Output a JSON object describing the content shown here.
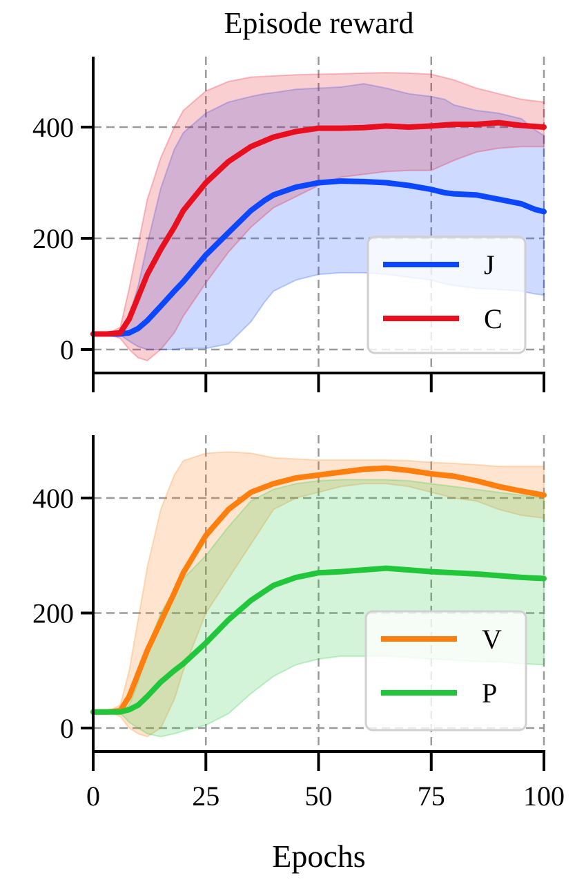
{
  "figure": {
    "title": "Episode reward",
    "xlabel": "Epochs"
  },
  "chart_data": [
    {
      "type": "line",
      "x_ticks": [
        "0",
        "25",
        "50",
        "75",
        "100"
      ],
      "y_ticks": [
        "0",
        "200",
        "400"
      ],
      "xlim": [
        0,
        100
      ],
      "ylim": [
        -40,
        510
      ],
      "grid": true,
      "legend_position": "center-right",
      "series": [
        {
          "name": "J",
          "color": "#0a47ff",
          "x": [
            0,
            3,
            6,
            8,
            10,
            12,
            15,
            18,
            20,
            25,
            30,
            35,
            38,
            40,
            45,
            50,
            55,
            60,
            65,
            70,
            75,
            78,
            80,
            85,
            90,
            95,
            98,
            100
          ],
          "y": [
            28,
            28,
            28,
            30,
            38,
            52,
            78,
            105,
            122,
            170,
            210,
            250,
            268,
            278,
            292,
            300,
            303,
            302,
            300,
            295,
            288,
            282,
            280,
            278,
            270,
            262,
            252,
            248
          ],
          "upper": [
            28,
            28,
            30,
            60,
            115,
            190,
            290,
            360,
            390,
            425,
            445,
            455,
            460,
            462,
            468,
            470,
            472,
            478,
            470,
            460,
            455,
            450,
            440,
            430,
            425,
            415,
            395,
            385
          ],
          "lower": [
            28,
            28,
            26,
            15,
            5,
            0,
            0,
            0,
            2,
            2,
            10,
            50,
            85,
            105,
            125,
            135,
            138,
            138,
            135,
            130,
            125,
            118,
            115,
            110,
            108,
            105,
            100,
            98
          ]
        },
        {
          "name": "C",
          "color": "#e8101e",
          "x": [
            0,
            3,
            6,
            8,
            10,
            12,
            15,
            18,
            20,
            25,
            30,
            35,
            40,
            45,
            50,
            55,
            60,
            65,
            70,
            75,
            80,
            85,
            90,
            95,
            100
          ],
          "y": [
            28,
            28,
            30,
            55,
            95,
            135,
            180,
            220,
            250,
            300,
            338,
            365,
            382,
            392,
            398,
            398,
            399,
            402,
            400,
            402,
            405,
            405,
            408,
            403,
            400
          ],
          "upper": [
            28,
            28,
            40,
            110,
            190,
            270,
            345,
            400,
            430,
            465,
            482,
            490,
            492,
            494,
            495,
            496,
            497,
            498,
            497,
            495,
            485,
            470,
            460,
            450,
            445
          ],
          "lower": [
            28,
            28,
            20,
            0,
            -15,
            -20,
            0,
            30,
            60,
            120,
            175,
            220,
            255,
            275,
            295,
            310,
            315,
            320,
            322,
            322,
            340,
            355,
            362,
            365,
            365
          ]
        }
      ]
    },
    {
      "type": "line",
      "x_ticks": [
        "0",
        "25",
        "50",
        "75",
        "100"
      ],
      "y_ticks": [
        "0",
        "200",
        "400"
      ],
      "xlim": [
        0,
        100
      ],
      "ylim": [
        -40,
        500
      ],
      "grid": true,
      "legend_position": "bottom-right",
      "series": [
        {
          "name": "V",
          "color": "#ff7f0e",
          "x": [
            0,
            3,
            6,
            8,
            10,
            12,
            15,
            18,
            20,
            25,
            30,
            35,
            40,
            45,
            50,
            55,
            60,
            65,
            70,
            75,
            80,
            85,
            90,
            95,
            100
          ],
          "y": [
            28,
            28,
            30,
            55,
            95,
            135,
            185,
            235,
            270,
            335,
            380,
            410,
            425,
            435,
            440,
            445,
            450,
            452,
            448,
            442,
            438,
            430,
            420,
            412,
            405
          ],
          "upper": [
            28,
            28,
            40,
            100,
            190,
            280,
            380,
            440,
            465,
            478,
            480,
            478,
            470,
            468,
            466,
            466,
            466,
            466,
            465,
            462,
            460,
            458,
            455,
            455,
            455
          ],
          "lower": [
            28,
            28,
            20,
            0,
            -10,
            -15,
            0,
            50,
            100,
            200,
            260,
            320,
            380,
            400,
            410,
            420,
            425,
            425,
            420,
            410,
            400,
            395,
            380,
            370,
            365
          ]
        },
        {
          "name": "P",
          "color": "#22c63a",
          "x": [
            0,
            3,
            6,
            8,
            10,
            12,
            15,
            18,
            20,
            25,
            30,
            35,
            40,
            45,
            50,
            55,
            60,
            65,
            70,
            75,
            80,
            85,
            90,
            95,
            100
          ],
          "y": [
            28,
            28,
            28,
            32,
            40,
            55,
            80,
            100,
            112,
            148,
            188,
            222,
            248,
            262,
            270,
            272,
            275,
            278,
            275,
            272,
            270,
            268,
            265,
            262,
            260
          ],
          "upper": [
            28,
            28,
            28,
            40,
            80,
            140,
            200,
            240,
            260,
            300,
            350,
            395,
            415,
            425,
            430,
            432,
            432,
            432,
            430,
            425,
            420,
            415,
            410,
            405,
            400
          ],
          "lower": [
            28,
            28,
            26,
            10,
            0,
            -10,
            -15,
            -10,
            -5,
            5,
            25,
            60,
            90,
            110,
            120,
            125,
            125,
            125,
            123,
            120,
            118,
            116,
            115,
            112,
            110
          ]
        }
      ]
    }
  ]
}
